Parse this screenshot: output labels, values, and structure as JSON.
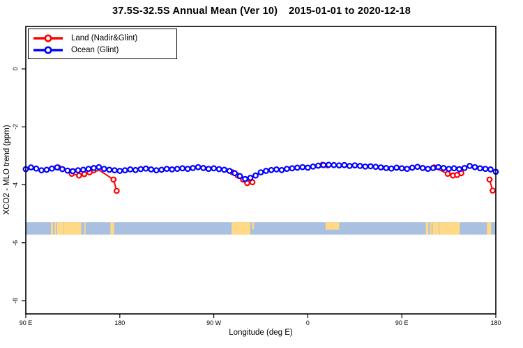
{
  "window": {
    "background": "#ffffff"
  },
  "title": {
    "range": "37.5S-32.5S Annual Mean (Ver 10)",
    "dates": "2015-01-01 to 2020-12-18"
  },
  "legend": {
    "position": "top-left",
    "items": [
      {
        "label": "Land (Nadir&Glint)",
        "color": "#ff0000",
        "marker": "open-circle-line"
      },
      {
        "label": "Ocean (Glint)",
        "color": "#0000ff",
        "marker": "open-circle-line"
      }
    ]
  },
  "chart_data": {
    "type": "line",
    "title": "37.5S-32.5S Annual Mean (Ver 10)  2015-01-01 to 2020-12-18",
    "xlabel": "Longitude (deg E)",
    "ylabel": "XCO2 - MLO trend (ppm)",
    "xlim": [
      90,
      540
    ],
    "ylim": [
      -8.46,
      1.46
    ],
    "grid": false,
    "legend_position": "top-left",
    "x_ticks": [
      {
        "lon": 90,
        "label": "90 E"
      },
      {
        "lon": 180,
        "label": "180"
      },
      {
        "lon": 270,
        "label": "90 W"
      },
      {
        "lon": 360,
        "label": "0"
      },
      {
        "lon": 450,
        "label": "90 E"
      },
      {
        "lon": 540,
        "label": "180"
      }
    ],
    "y_ticks": [
      {
        "v": 0,
        "label": "0"
      },
      {
        "v": -2,
        "label": "-2"
      },
      {
        "v": -4,
        "label": "-4"
      },
      {
        "v": -6,
        "label": "-6"
      },
      {
        "v": -8,
        "label": "-8"
      }
    ],
    "series": [
      {
        "name": "Land (Nadir&Glint)",
        "color": "#ff0000",
        "marker": "open-circle",
        "segments": [
          [
            [
              121,
              -3.4
            ],
            [
              134,
              -3.62
            ],
            [
              141,
              -3.68
            ],
            [
              146,
              -3.63
            ],
            [
              151,
              -3.57
            ],
            [
              155,
              -3.5
            ],
            [
              158,
              -3.44
            ],
            [
              174,
              -3.82
            ],
            [
              177,
              -4.21
            ]
          ],
          [
            [
              288,
              -3.57
            ],
            [
              293,
              -3.68
            ],
            [
              298,
              -3.82
            ],
            [
              302,
              -3.94
            ],
            [
              307,
              -3.91
            ]
          ],
          [
            [
              374,
              -3.31
            ],
            [
              379,
              -3.33
            ]
          ],
          [
            [
              481,
              -3.4
            ],
            [
              494,
              -3.62
            ],
            [
              499,
              -3.68
            ],
            [
              503,
              -3.66
            ],
            [
              507,
              -3.6
            ]
          ],
          [
            [
              534,
              -3.82
            ],
            [
              537,
              -4.2
            ]
          ]
        ]
      },
      {
        "name": "Ocean (Glint)",
        "color": "#0000ff",
        "marker": "open-circle",
        "segments": [
          [
            [
              90,
              -3.46
            ],
            [
              95,
              -3.4
            ],
            [
              100,
              -3.44
            ],
            [
              105,
              -3.5
            ],
            [
              110,
              -3.48
            ],
            [
              115,
              -3.44
            ],
            [
              120,
              -3.4
            ],
            [
              125,
              -3.46
            ],
            [
              130,
              -3.51
            ],
            [
              135,
              -3.53
            ],
            [
              140,
              -3.5
            ],
            [
              145,
              -3.48
            ],
            [
              150,
              -3.45
            ],
            [
              155,
              -3.42
            ],
            [
              160,
              -3.39
            ],
            [
              165,
              -3.45
            ],
            [
              170,
              -3.48
            ],
            [
              175,
              -3.5
            ],
            [
              180,
              -3.52
            ],
            [
              185,
              -3.5
            ],
            [
              190,
              -3.47
            ],
            [
              195,
              -3.49
            ],
            [
              200,
              -3.46
            ],
            [
              205,
              -3.44
            ],
            [
              210,
              -3.47
            ],
            [
              215,
              -3.5
            ],
            [
              220,
              -3.48
            ],
            [
              225,
              -3.45
            ],
            [
              230,
              -3.47
            ],
            [
              235,
              -3.45
            ],
            [
              240,
              -3.43
            ],
            [
              245,
              -3.45
            ],
            [
              250,
              -3.42
            ],
            [
              255,
              -3.39
            ],
            [
              260,
              -3.42
            ],
            [
              265,
              -3.45
            ],
            [
              270,
              -3.43
            ],
            [
              275,
              -3.46
            ],
            [
              280,
              -3.48
            ],
            [
              285,
              -3.52
            ],
            [
              290,
              -3.6
            ],
            [
              295,
              -3.7
            ],
            [
              300,
              -3.8
            ],
            [
              305,
              -3.76
            ],
            [
              310,
              -3.68
            ],
            [
              315,
              -3.57
            ],
            [
              320,
              -3.52
            ],
            [
              325,
              -3.49
            ],
            [
              330,
              -3.47
            ],
            [
              335,
              -3.49
            ],
            [
              340,
              -3.45
            ],
            [
              345,
              -3.43
            ],
            [
              350,
              -3.41
            ],
            [
              355,
              -3.39
            ],
            [
              360,
              -3.41
            ],
            [
              365,
              -3.37
            ],
            [
              370,
              -3.34
            ],
            [
              375,
              -3.32
            ],
            [
              380,
              -3.31
            ],
            [
              385,
              -3.32
            ],
            [
              390,
              -3.33
            ],
            [
              395,
              -3.32
            ],
            [
              400,
              -3.35
            ],
            [
              405,
              -3.33
            ],
            [
              410,
              -3.35
            ],
            [
              415,
              -3.37
            ],
            [
              420,
              -3.36
            ],
            [
              425,
              -3.38
            ],
            [
              430,
              -3.4
            ],
            [
              435,
              -3.42
            ],
            [
              440,
              -3.44
            ],
            [
              445,
              -3.41
            ],
            [
              450,
              -3.43
            ],
            [
              455,
              -3.45
            ],
            [
              460,
              -3.41
            ],
            [
              465,
              -3.38
            ],
            [
              470,
              -3.42
            ],
            [
              475,
              -3.45
            ],
            [
              480,
              -3.42
            ],
            [
              485,
              -3.39
            ],
            [
              490,
              -3.42
            ],
            [
              495,
              -3.45
            ],
            [
              500,
              -3.43
            ],
            [
              505,
              -3.46
            ],
            [
              510,
              -3.42
            ],
            [
              515,
              -3.35
            ],
            [
              520,
              -3.39
            ],
            [
              525,
              -3.43
            ],
            [
              530,
              -3.45
            ],
            [
              535,
              -3.47
            ],
            [
              540,
              -3.55
            ]
          ]
        ]
      }
    ],
    "map_strip": {
      "description": "land/ocean map of the 37.5S-32.5S latitude band",
      "ocean_color": "#a9c0e0",
      "land_color": "#ffd985",
      "value_top": -5.29,
      "value_bottom": -5.72,
      "land_patches": [
        {
          "from": 114,
          "to": 116
        },
        {
          "from": 117.5,
          "to": 119
        },
        {
          "from": 120,
          "to": 126
        },
        {
          "from": 126.3,
          "to": 143
        },
        {
          "from": 146,
          "to": 147.2
        },
        {
          "from": 171,
          "to": 174.6
        },
        {
          "from": 287,
          "to": 305
        },
        {
          "from": 306.5,
          "to": 308.5,
          "hf": 0.55
        },
        {
          "from": 377,
          "to": 390,
          "hf": 0.6
        },
        {
          "from": 473,
          "to": 475.5
        },
        {
          "from": 477,
          "to": 478.5
        },
        {
          "from": 479.5,
          "to": 485.5
        },
        {
          "from": 486,
          "to": 505.5
        },
        {
          "from": 531.5,
          "to": 535.5
        }
      ]
    }
  }
}
